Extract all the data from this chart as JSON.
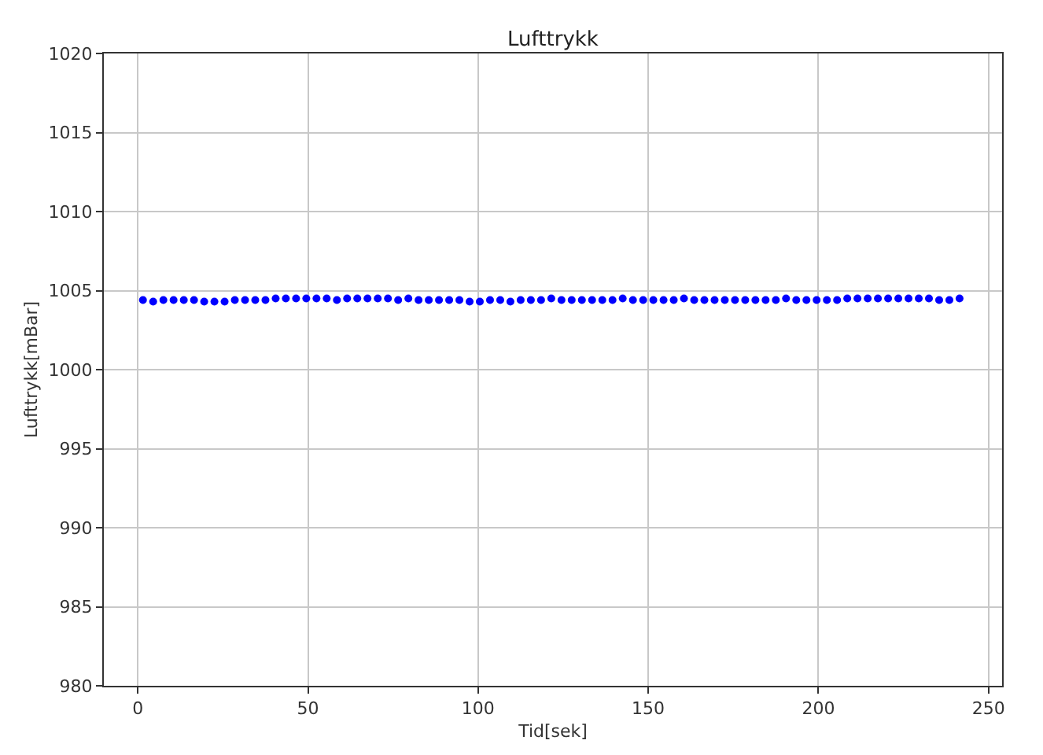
{
  "chart_data": {
    "type": "scatter",
    "title": "Lufttrykk",
    "xlabel": "Tid[sek]",
    "ylabel": "Lufttrykk[mBar]",
    "x": [
      1.5,
      4.5,
      7.5,
      10.5,
      13.5,
      16.5,
      19.5,
      22.5,
      25.5,
      28.5,
      31.5,
      34.5,
      37.5,
      40.5,
      43.5,
      46.5,
      49.5,
      52.5,
      55.5,
      58.5,
      61.5,
      64.5,
      67.5,
      70.5,
      73.5,
      76.5,
      79.5,
      82.5,
      85.5,
      88.5,
      91.5,
      94.5,
      97.5,
      100.5,
      103.5,
      106.5,
      109.5,
      112.5,
      115.5,
      118.5,
      121.5,
      124.5,
      127.5,
      130.5,
      133.5,
      136.5,
      139.5,
      142.5,
      145.5,
      148.5,
      151.5,
      154.5,
      157.5,
      160.5,
      163.5,
      166.5,
      169.5,
      172.5,
      175.5,
      178.5,
      181.5,
      184.5,
      187.5,
      190.5,
      193.5,
      196.5,
      199.5,
      202.5,
      205.5,
      208.5,
      211.5,
      214.5,
      217.5,
      220.5,
      223.5,
      226.5,
      229.5,
      232.5,
      235.5,
      238.5,
      241.5
    ],
    "series": [
      {
        "color": "#0000ff",
        "values": [
          1004.4,
          1004.3,
          1004.4,
          1004.4,
          1004.4,
          1004.4,
          1004.3,
          1004.3,
          1004.3,
          1004.4,
          1004.4,
          1004.4,
          1004.4,
          1004.5,
          1004.5,
          1004.5,
          1004.5,
          1004.5,
          1004.5,
          1004.4,
          1004.5,
          1004.5,
          1004.5,
          1004.5,
          1004.5,
          1004.4,
          1004.5,
          1004.4,
          1004.4,
          1004.4,
          1004.4,
          1004.4,
          1004.3,
          1004.3,
          1004.4,
          1004.4,
          1004.3,
          1004.4,
          1004.4,
          1004.4,
          1004.5,
          1004.4,
          1004.4,
          1004.4,
          1004.4,
          1004.4,
          1004.4,
          1004.5,
          1004.4,
          1004.4,
          1004.4,
          1004.4,
          1004.4,
          1004.5,
          1004.4,
          1004.4,
          1004.4,
          1004.4,
          1004.4,
          1004.4,
          1004.4,
          1004.4,
          1004.4,
          1004.5,
          1004.4,
          1004.4,
          1004.4,
          1004.4,
          1004.4,
          1004.5,
          1004.5,
          1004.5,
          1004.5,
          1004.5,
          1004.5,
          1004.5,
          1004.5,
          1004.5,
          1004.4,
          1004.4,
          1004.5
        ]
      }
    ],
    "xlim": [
      -10,
      254
    ],
    "xticks": [
      0,
      50,
      100,
      150,
      200,
      250
    ],
    "ylim": [
      980,
      1020
    ],
    "yticks": [
      980,
      985,
      990,
      995,
      1000,
      1005,
      1010,
      1015,
      1020
    ],
    "grid": true,
    "marker": "circle"
  }
}
